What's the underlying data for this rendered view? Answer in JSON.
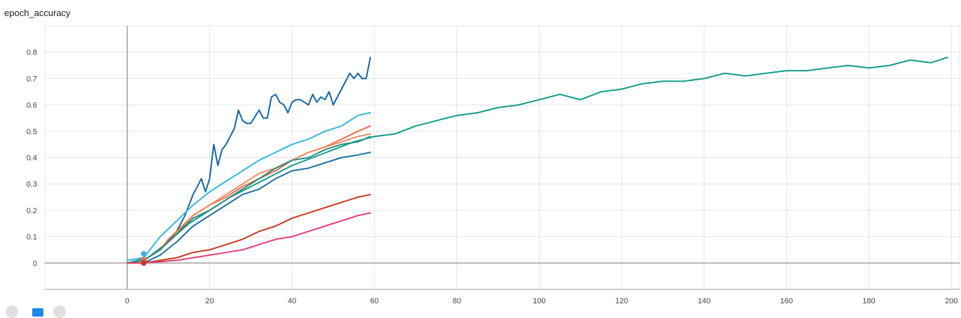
{
  "chart_data": {
    "type": "line",
    "title": "epoch_accuracy",
    "xlim": [
      -20,
      202
    ],
    "ylim": [
      -0.1,
      0.9
    ],
    "xticks": [
      0,
      20,
      40,
      60,
      80,
      100,
      120,
      140,
      160,
      180,
      200
    ],
    "yticks": [
      0,
      0.1,
      0.2,
      0.3,
      0.4,
      0.5,
      0.6,
      0.7,
      0.8
    ],
    "ytick_labels": [
      "0",
      "0.1",
      "0.2",
      "0.3",
      "0.4",
      "0.5",
      "0.6",
      "0.7",
      "0.8"
    ],
    "grid": true,
    "legend": "none",
    "series": [
      {
        "color": "#0f9d8a",
        "x": [
          0,
          5,
          10,
          15,
          20,
          25,
          30,
          35,
          40,
          45,
          50,
          55,
          60,
          65,
          70,
          75,
          80,
          85,
          90,
          95,
          100,
          105,
          110,
          115,
          120,
          125,
          130,
          135,
          140,
          145,
          150,
          155,
          160,
          165,
          170,
          175,
          180,
          185,
          190,
          195,
          199
        ],
        "y": [
          0,
          0.02,
          0.08,
          0.15,
          0.2,
          0.25,
          0.29,
          0.33,
          0.37,
          0.4,
          0.43,
          0.46,
          0.48,
          0.49,
          0.52,
          0.54,
          0.56,
          0.57,
          0.59,
          0.6,
          0.62,
          0.64,
          0.62,
          0.65,
          0.66,
          0.68,
          0.69,
          0.69,
          0.7,
          0.72,
          0.71,
          0.72,
          0.73,
          0.73,
          0.74,
          0.75,
          0.74,
          0.75,
          0.77,
          0.76,
          0.78
        ]
      },
      {
        "color": "#1466a6",
        "x": [
          0,
          4,
          8,
          12,
          14,
          16,
          18,
          19,
          20,
          21,
          22,
          23,
          24,
          26,
          27,
          28,
          29,
          30,
          32,
          33,
          34,
          35,
          36,
          37,
          38,
          39,
          40,
          41,
          42,
          43,
          44,
          45,
          46,
          47,
          48,
          49,
          50,
          52,
          54,
          55,
          56,
          57,
          58,
          59
        ],
        "y": [
          0,
          0.01,
          0.05,
          0.12,
          0.18,
          0.26,
          0.32,
          0.27,
          0.32,
          0.45,
          0.37,
          0.43,
          0.45,
          0.51,
          0.58,
          0.54,
          0.53,
          0.53,
          0.58,
          0.55,
          0.55,
          0.63,
          0.64,
          0.61,
          0.6,
          0.57,
          0.61,
          0.62,
          0.62,
          0.61,
          0.6,
          0.64,
          0.61,
          0.63,
          0.62,
          0.65,
          0.6,
          0.66,
          0.72,
          0.7,
          0.72,
          0.7,
          0.7,
          0.78
        ]
      },
      {
        "color": "#33b5e5",
        "x": [
          0,
          4,
          8,
          12,
          16,
          20,
          24,
          28,
          32,
          36,
          40,
          44,
          48,
          52,
          56,
          59
        ],
        "y": [
          0.01,
          0.02,
          0.1,
          0.16,
          0.22,
          0.27,
          0.31,
          0.35,
          0.39,
          0.42,
          0.45,
          0.47,
          0.5,
          0.52,
          0.56,
          0.57
        ]
      },
      {
        "color": "#ef6c45",
        "x": [
          0,
          4,
          8,
          10,
          12,
          16,
          20,
          24,
          28,
          32,
          36,
          40,
          44,
          48,
          52,
          56,
          59
        ],
        "y": [
          0,
          0.01,
          0.05,
          0.09,
          0.12,
          0.18,
          0.22,
          0.25,
          0.29,
          0.32,
          0.35,
          0.39,
          0.42,
          0.44,
          0.47,
          0.5,
          0.52
        ]
      },
      {
        "color": "#f08a60",
        "x": [
          0,
          4,
          8,
          12,
          16,
          20,
          24,
          28,
          32,
          36,
          40,
          44,
          48,
          52,
          56,
          59
        ],
        "y": [
          0,
          0.01,
          0.05,
          0.11,
          0.18,
          0.22,
          0.26,
          0.3,
          0.34,
          0.36,
          0.39,
          0.42,
          0.44,
          0.46,
          0.48,
          0.49
        ]
      },
      {
        "color": "#2a8c82",
        "x": [
          0,
          4,
          8,
          12,
          16,
          20,
          24,
          28,
          32,
          36,
          40,
          44,
          48,
          52,
          56,
          59
        ],
        "y": [
          0,
          0.01,
          0.05,
          0.11,
          0.17,
          0.2,
          0.24,
          0.28,
          0.32,
          0.36,
          0.39,
          0.4,
          0.43,
          0.45,
          0.46,
          0.48
        ]
      },
      {
        "color": "#1d6fa8",
        "x": [
          0,
          4,
          8,
          12,
          16,
          20,
          24,
          28,
          32,
          36,
          40,
          44,
          48,
          52,
          56,
          59
        ],
        "y": [
          0,
          0,
          0.03,
          0.08,
          0.14,
          0.18,
          0.22,
          0.26,
          0.28,
          0.32,
          0.35,
          0.36,
          0.38,
          0.4,
          0.41,
          0.42
        ]
      },
      {
        "color": "#c8381b",
        "x": [
          0,
          4,
          8,
          12,
          16,
          20,
          24,
          28,
          32,
          36,
          40,
          44,
          48,
          52,
          56,
          59
        ],
        "y": [
          0,
          0,
          0.01,
          0.02,
          0.04,
          0.05,
          0.07,
          0.09,
          0.12,
          0.14,
          0.17,
          0.19,
          0.21,
          0.23,
          0.25,
          0.26
        ]
      },
      {
        "color": "#e23f74",
        "x": [
          0,
          4,
          8,
          12,
          16,
          20,
          24,
          28,
          32,
          36,
          40,
          44,
          48,
          52,
          56,
          59
        ],
        "y": [
          0,
          0,
          0.005,
          0.01,
          0.02,
          0.03,
          0.04,
          0.05,
          0.07,
          0.09,
          0.1,
          0.12,
          0.14,
          0.16,
          0.18,
          0.19
        ]
      }
    ],
    "markers": [
      {
        "color": "#33b5e5",
        "x": 4,
        "y": 0.035
      },
      {
        "color": "#ef6c45",
        "x": 4,
        "y": 0.012
      },
      {
        "color": "#c8381b",
        "x": 4,
        "y": 0.0
      }
    ]
  }
}
